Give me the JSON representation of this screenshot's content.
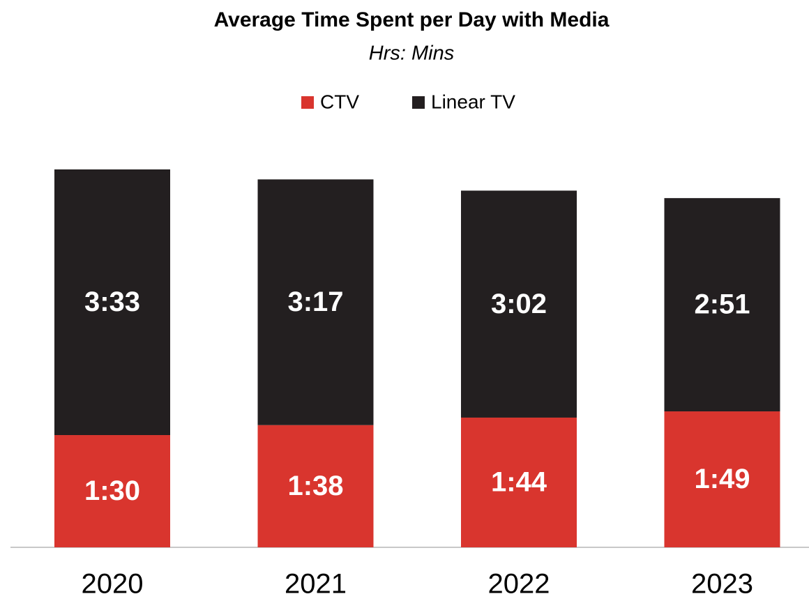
{
  "chart_data": {
    "type": "stacked_bar",
    "title": "Average Time Spent per Day with Media",
    "subtitle": "Hrs: Mins",
    "categories": [
      "2020",
      "2021",
      "2022",
      "2023"
    ],
    "series": [
      {
        "name": "CTV",
        "color": "#d9352e",
        "values": [
          90,
          98,
          104,
          109
        ],
        "value_labels": [
          "1:30",
          "1:38",
          "1:44",
          "1:49"
        ]
      },
      {
        "name": "Linear TV",
        "color": "#231f20",
        "values": [
          213,
          197,
          182,
          171
        ],
        "value_labels": [
          "3:33",
          "3:17",
          "3:02",
          "2:51"
        ]
      }
    ],
    "legend": "top"
  }
}
